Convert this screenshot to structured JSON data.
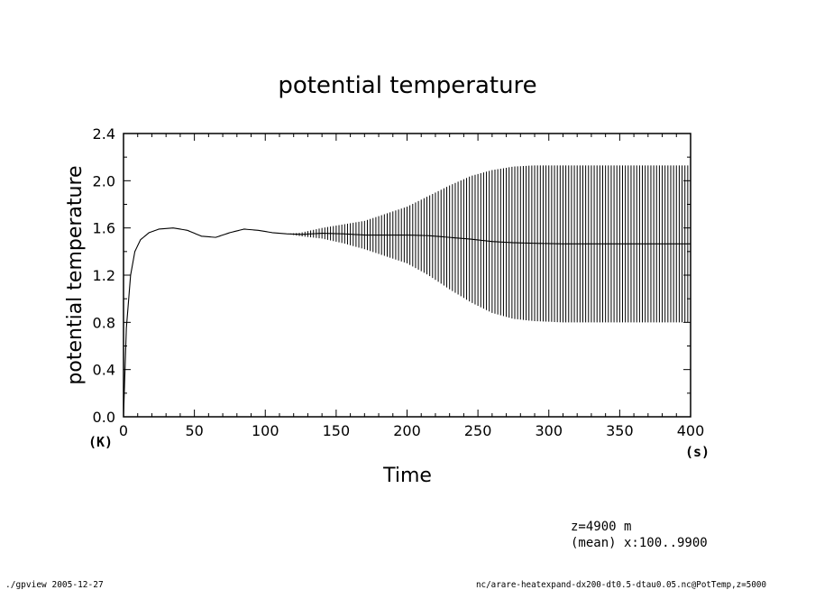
{
  "chart_data": {
    "type": "line",
    "title": "potential temperature",
    "xlabel": "Time",
    "ylabel": "potential temperature",
    "x_unit": "(s)",
    "y_unit": "(K)",
    "xlim": [
      0,
      400
    ],
    "ylim": [
      0.0,
      2.4
    ],
    "x_ticks": [
      "0",
      "50",
      "100",
      "150",
      "200",
      "250",
      "300",
      "350",
      "400"
    ],
    "y_ticks": [
      "0.0",
      "0.4",
      "0.8",
      "1.2",
      "1.6",
      "2.0",
      "2.4"
    ],
    "grid": false,
    "line_color": "#000000",
    "series": [
      {
        "x": [
          0,
          2,
          5,
          8,
          12,
          18,
          25,
          35,
          45,
          55,
          65,
          75,
          85,
          95,
          105,
          115,
          125,
          140,
          155,
          170,
          185,
          200,
          215,
          230,
          245,
          260,
          275,
          290,
          310,
          330,
          350,
          370,
          400
        ],
        "upper": [
          0.0,
          0.75,
          1.2,
          1.4,
          1.5,
          1.56,
          1.59,
          1.6,
          1.58,
          1.53,
          1.52,
          1.56,
          1.59,
          1.58,
          1.56,
          1.55,
          1.56,
          1.6,
          1.63,
          1.66,
          1.72,
          1.78,
          1.87,
          1.96,
          2.04,
          2.09,
          2.12,
          2.13,
          2.13,
          2.13,
          2.13,
          2.13,
          2.13
        ],
        "lower": [
          0.0,
          0.75,
          1.2,
          1.4,
          1.5,
          1.56,
          1.59,
          1.6,
          1.58,
          1.53,
          1.52,
          1.56,
          1.59,
          1.58,
          1.56,
          1.55,
          1.53,
          1.51,
          1.47,
          1.42,
          1.36,
          1.3,
          1.2,
          1.08,
          0.97,
          0.88,
          0.83,
          0.81,
          0.8,
          0.8,
          0.8,
          0.8,
          0.8
        ],
        "mid": [
          0.0,
          0.75,
          1.2,
          1.4,
          1.5,
          1.56,
          1.59,
          1.6,
          1.58,
          1.53,
          1.52,
          1.56,
          1.59,
          1.58,
          1.56,
          1.55,
          1.545,
          1.555,
          1.55,
          1.54,
          1.54,
          1.54,
          1.535,
          1.52,
          1.505,
          1.485,
          1.475,
          1.47,
          1.465,
          1.465,
          1.465,
          1.465,
          1.465
        ]
      }
    ]
  },
  "annotations": {
    "info_line1": "z=4900  m",
    "info_line2": "(mean) x:100..9900"
  },
  "footer": {
    "left": "./gpview  2005-12-27",
    "right": "nc/arare-heatexpand-dx200-dt0.5-dtau0.05.nc@PotTemp,z=5000"
  }
}
